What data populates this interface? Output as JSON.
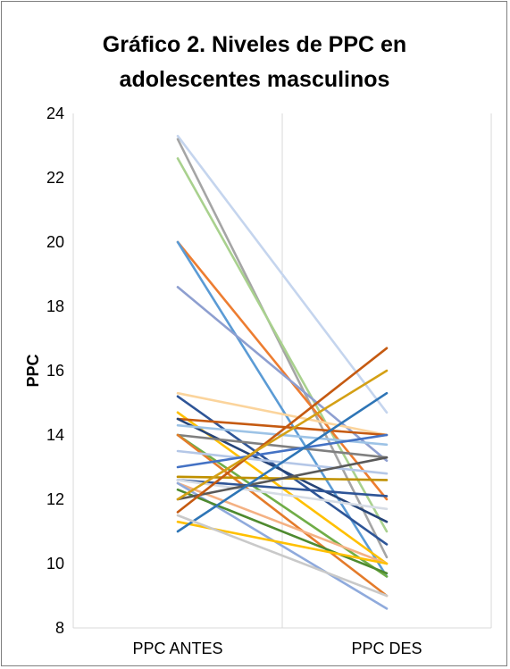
{
  "chart_data": {
    "type": "line",
    "title_line1": "Gráfico 2. Niveles de PPC en",
    "title_line2": "adolescentes masculinos",
    "xlabel": "",
    "ylabel": "PPC",
    "categories": [
      "PPC ANTES",
      "PPC DES"
    ],
    "ylim": [
      8,
      24
    ],
    "yticks": [
      8,
      10,
      12,
      14,
      16,
      18,
      20,
      22,
      24
    ],
    "grid": "vertical",
    "legend": "none",
    "series": [
      {
        "color": "#c5d5ee",
        "values": [
          23.3,
          14.7
        ]
      },
      {
        "color": "#a5a5a5",
        "values": [
          23.2,
          10.2
        ]
      },
      {
        "color": "#a9d18e",
        "values": [
          22.6,
          11.0
        ]
      },
      {
        "color": "#ed7d31",
        "values": [
          20.0,
          12.0
        ]
      },
      {
        "color": "#5b9bd5",
        "values": [
          20.0,
          9.6
        ]
      },
      {
        "color": "#8e9fd0",
        "values": [
          18.6,
          13.2
        ]
      },
      {
        "color": "#fbd49c",
        "values": [
          15.3,
          14.0
        ]
      },
      {
        "color": "#2e5597",
        "values": [
          15.2,
          10.6
        ]
      },
      {
        "color": "#ffc000",
        "values": [
          14.7,
          10.0
        ]
      },
      {
        "color": "#c55a11",
        "values": [
          14.5,
          14.0
        ]
      },
      {
        "color": "#264478",
        "values": [
          14.5,
          11.3
        ]
      },
      {
        "color": "#9dc3e6",
        "values": [
          14.3,
          13.7
        ]
      },
      {
        "color": "#7f7f7f",
        "values": [
          14.0,
          13.3
        ]
      },
      {
        "color": "#70ad47",
        "values": [
          14.0,
          9.6
        ]
      },
      {
        "color": "#e47b2a",
        "values": [
          14.0,
          9.0
        ]
      },
      {
        "color": "#b4c7e7",
        "values": [
          13.5,
          12.8
        ]
      },
      {
        "color": "#4472c4",
        "values": [
          13.0,
          14.0
        ]
      },
      {
        "color": "#bf9000",
        "values": [
          12.7,
          12.6
        ]
      },
      {
        "color": "#2f5597",
        "values": [
          12.6,
          12.1
        ]
      },
      {
        "color": "#d6dce5",
        "values": [
          12.6,
          11.7
        ]
      },
      {
        "color": "#f4b183",
        "values": [
          12.5,
          10.0
        ]
      },
      {
        "color": "#8faadc",
        "values": [
          12.5,
          8.6
        ]
      },
      {
        "color": "#4e8a2f",
        "values": [
          12.3,
          9.7
        ]
      },
      {
        "color": "#595959",
        "values": [
          12.0,
          13.3
        ]
      },
      {
        "color": "#c55a11",
        "values": [
          11.6,
          16.7
        ]
      },
      {
        "color": "#ffc000",
        "values": [
          11.3,
          10.0
        ]
      },
      {
        "color": "#d4a015",
        "values": [
          12.0,
          16.0
        ]
      },
      {
        "color": "#2e75b6",
        "values": [
          11.0,
          15.3
        ]
      },
      {
        "color": "#c9c9c9",
        "values": [
          11.5,
          9.0
        ]
      }
    ]
  }
}
